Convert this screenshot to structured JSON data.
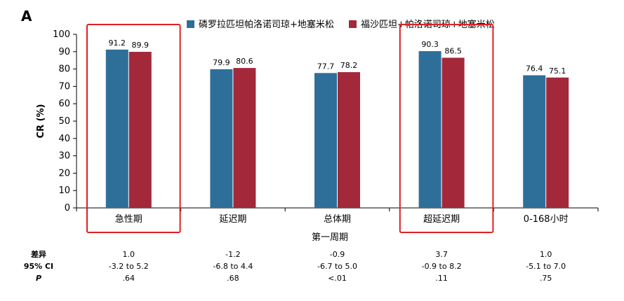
{
  "panel_label": "A",
  "chart_data": {
    "type": "bar",
    "title": "",
    "xlabel": "第一周期",
    "ylabel": "CR (%)",
    "ylim": [
      0,
      100
    ],
    "yticks": [
      0,
      10,
      20,
      30,
      40,
      50,
      60,
      70,
      80,
      90,
      100
    ],
    "categories": [
      "急性期",
      "延迟期",
      "总体期",
      "超延迟期",
      "0-168小时"
    ],
    "series": [
      {
        "name": "磷罗拉匹坦帕洛诺司琼+地塞米松",
        "color": "#2e6f9a",
        "values": [
          91.2,
          79.9,
          77.7,
          90.3,
          76.4
        ]
      },
      {
        "name": "福沙匹坦+帕洛诺司琼+地塞米松",
        "color": "#a3283a",
        "values": [
          89.9,
          80.6,
          78.2,
          86.5,
          75.1
        ]
      }
    ],
    "highlighted_categories": [
      0,
      3
    ],
    "highlight_color": "#e02020",
    "legend_position": "top"
  },
  "stats": {
    "row_labels": [
      "差异",
      "95% CI",
      "P"
    ],
    "difference": [
      "1.0",
      "-1.2",
      "-0.9",
      "3.7",
      "1.0"
    ],
    "ci": [
      "-3.2 to 5.2",
      "-6.8 to 4.4",
      "-6.7 to 5.0",
      "-0.9 to 8.2",
      "-5.1 to 7.0"
    ],
    "p": [
      ".64",
      ".68",
      "<.01",
      ".11",
      ".75"
    ]
  }
}
